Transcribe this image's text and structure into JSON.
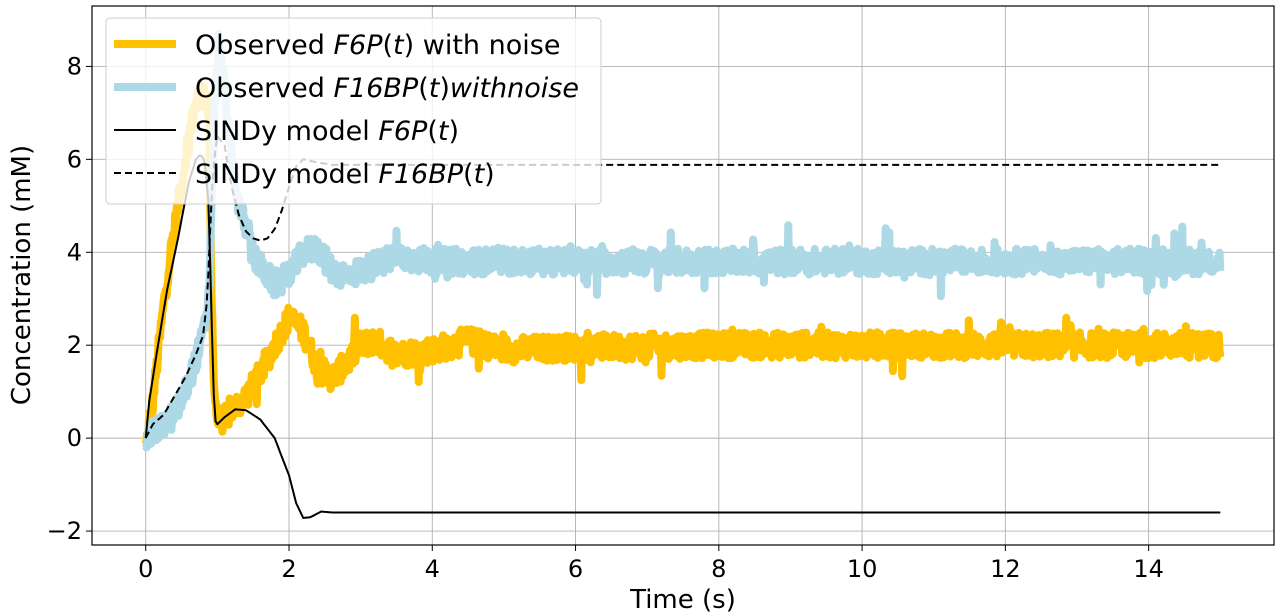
{
  "chart_data": {
    "type": "line",
    "xlabel": "Time (s)",
    "ylabel": "Concentration (mM)",
    "xlim": [
      -0.75,
      15.75
    ],
    "ylim": [
      -2.3,
      9.3
    ],
    "xticks": [
      0,
      2,
      4,
      6,
      8,
      10,
      12,
      14
    ],
    "xtick_labels": [
      "0",
      "2",
      "4",
      "6",
      "8",
      "10",
      "12",
      "14"
    ],
    "yticks": [
      -2,
      0,
      2,
      4,
      6,
      8
    ],
    "ytick_labels": [
      "−2",
      "0",
      "2",
      "4",
      "6",
      "8"
    ],
    "grid": true,
    "legend_position": "top-left",
    "legend": [
      {
        "prefix": "Observed ",
        "math": "F6P",
        "suffix_math": "(t)",
        "suffix": " with noise"
      },
      {
        "prefix": "Observed ",
        "math": "F16BP",
        "suffix_math": "(t)withnoise",
        "suffix": ""
      },
      {
        "prefix": "SINDy model ",
        "math": "F6P",
        "suffix_math": "(t)",
        "suffix": ""
      },
      {
        "prefix": "SINDy model ",
        "math": "F16BP",
        "suffix_math": "(t)",
        "suffix": ""
      }
    ],
    "series": [
      {
        "name": "Observed F6P(t) with noise",
        "color": "#FFC000",
        "style": "solid-thick",
        "noise": 0.28,
        "points": [
          [
            0,
            -0.2
          ],
          [
            0.1,
            0.8
          ],
          [
            0.2,
            2.2
          ],
          [
            0.3,
            3.5
          ],
          [
            0.4,
            4.5
          ],
          [
            0.5,
            5.5
          ],
          [
            0.6,
            6.5
          ],
          [
            0.7,
            7.2
          ],
          [
            0.8,
            7.5
          ],
          [
            0.88,
            7.0
          ],
          [
            0.92,
            3.0
          ],
          [
            0.96,
            1.0
          ],
          [
            1.0,
            0.4
          ],
          [
            1.1,
            0.4
          ],
          [
            1.2,
            0.6
          ],
          [
            1.4,
            0.9
          ],
          [
            1.6,
            1.4
          ],
          [
            1.8,
            2.0
          ],
          [
            2.0,
            2.6
          ],
          [
            2.2,
            2.3
          ],
          [
            2.4,
            1.5
          ],
          [
            2.6,
            1.3
          ],
          [
            2.8,
            1.6
          ],
          [
            3.0,
            2.0
          ],
          [
            3.2,
            2.1
          ],
          [
            3.5,
            1.8
          ],
          [
            4.0,
            1.9
          ],
          [
            4.5,
            2.1
          ],
          [
            5.0,
            1.9
          ],
          [
            6.0,
            1.95
          ],
          [
            8.0,
            2.0
          ],
          [
            10.0,
            2.0
          ],
          [
            12.0,
            2.0
          ],
          [
            15.0,
            2.0
          ]
        ]
      },
      {
        "name": "Observed F16BP(t) with noise",
        "color": "#ADD8E6",
        "style": "solid-thick",
        "noise": 0.28,
        "points": [
          [
            0,
            0.0
          ],
          [
            0.2,
            0.2
          ],
          [
            0.4,
            0.5
          ],
          [
            0.5,
            0.8
          ],
          [
            0.6,
            1.2
          ],
          [
            0.7,
            1.7
          ],
          [
            0.8,
            2.2
          ],
          [
            0.88,
            3.0
          ],
          [
            0.93,
            5.5
          ],
          [
            0.97,
            7.5
          ],
          [
            1.02,
            8.5
          ],
          [
            1.1,
            7.5
          ],
          [
            1.2,
            6.0
          ],
          [
            1.3,
            5.0
          ],
          [
            1.4,
            4.5
          ],
          [
            1.5,
            3.9
          ],
          [
            1.6,
            3.7
          ],
          [
            1.8,
            3.3
          ],
          [
            2.0,
            3.5
          ],
          [
            2.2,
            4.0
          ],
          [
            2.4,
            4.1
          ],
          [
            2.6,
            3.6
          ],
          [
            2.8,
            3.5
          ],
          [
            3.0,
            3.6
          ],
          [
            3.5,
            3.9
          ],
          [
            4.0,
            3.8
          ],
          [
            5.0,
            3.8
          ],
          [
            6.0,
            3.8
          ],
          [
            8.0,
            3.8
          ],
          [
            10.0,
            3.8
          ],
          [
            12.0,
            3.8
          ],
          [
            15.0,
            3.8
          ]
        ]
      },
      {
        "name": "SINDy model F6P(t)",
        "color": "#000000",
        "style": "solid",
        "noise": 0,
        "points": [
          [
            0,
            0.0
          ],
          [
            0.05,
            0.8
          ],
          [
            0.15,
            1.8
          ],
          [
            0.3,
            3.2
          ],
          [
            0.45,
            4.3
          ],
          [
            0.6,
            5.5
          ],
          [
            0.7,
            6.0
          ],
          [
            0.76,
            6.1
          ],
          [
            0.82,
            6.0
          ],
          [
            0.88,
            5.0
          ],
          [
            0.92,
            2.5
          ],
          [
            0.96,
            0.4
          ],
          [
            1.0,
            0.3
          ],
          [
            1.1,
            0.45
          ],
          [
            1.25,
            0.62
          ],
          [
            1.4,
            0.6
          ],
          [
            1.6,
            0.4
          ],
          [
            1.8,
            0.0
          ],
          [
            2.0,
            -0.8
          ],
          [
            2.1,
            -1.4
          ],
          [
            2.2,
            -1.72
          ],
          [
            2.3,
            -1.7
          ],
          [
            2.45,
            -1.58
          ],
          [
            2.6,
            -1.6
          ],
          [
            3.0,
            -1.6
          ],
          [
            15.0,
            -1.6
          ]
        ]
      },
      {
        "name": "SINDy model F16BP(t)",
        "color": "#000000",
        "style": "dashed",
        "noise": 0,
        "points": [
          [
            0,
            0.0
          ],
          [
            0.1,
            0.3
          ],
          [
            0.25,
            0.5
          ],
          [
            0.4,
            0.9
          ],
          [
            0.55,
            1.3
          ],
          [
            0.7,
            1.8
          ],
          [
            0.8,
            2.2
          ],
          [
            0.86,
            3.0
          ],
          [
            0.9,
            4.5
          ],
          [
            0.93,
            5.5
          ],
          [
            0.97,
            6.2
          ],
          [
            1.0,
            6.5
          ],
          [
            1.1,
            6.3
          ],
          [
            1.2,
            5.4
          ],
          [
            1.3,
            4.8
          ],
          [
            1.4,
            4.45
          ],
          [
            1.5,
            4.3
          ],
          [
            1.6,
            4.25
          ],
          [
            1.7,
            4.3
          ],
          [
            1.8,
            4.5
          ],
          [
            1.9,
            4.9
          ],
          [
            2.0,
            5.4
          ],
          [
            2.1,
            5.85
          ],
          [
            2.2,
            6.0
          ],
          [
            2.35,
            5.95
          ],
          [
            2.6,
            5.88
          ],
          [
            3.0,
            5.88
          ],
          [
            15.0,
            5.88
          ]
        ]
      }
    ]
  }
}
